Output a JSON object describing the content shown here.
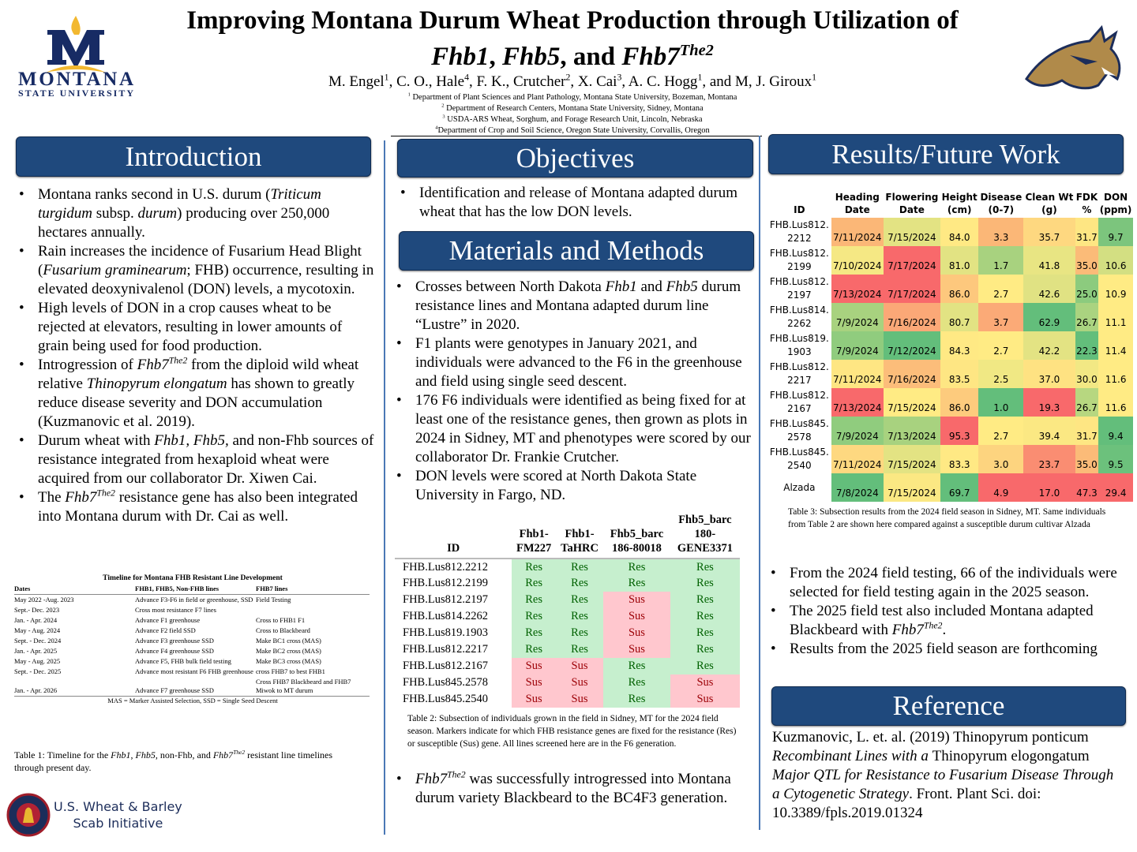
{
  "header": {
    "title_line1": "Improving Montana Durum Wheat Production through Utilization of",
    "title_line2": [
      {
        "t": "Fhb1",
        "s": "i"
      },
      {
        "t": ", "
      },
      {
        "t": "Fhb5",
        "s": "i"
      },
      {
        "t": ", and "
      },
      {
        "t": "Fhb7",
        "s": "i"
      },
      {
        "t": "The2",
        "s": "isup"
      }
    ],
    "authors": [
      {
        "t": "M. Engel"
      },
      {
        "t": "1",
        "s": "sup"
      },
      {
        "t": ", C. O., Hale"
      },
      {
        "t": "4",
        "s": "sup"
      },
      {
        "t": ", F. K., Crutcher"
      },
      {
        "t": "2",
        "s": "sup"
      },
      {
        "t": ", X. Cai"
      },
      {
        "t": "3",
        "s": "sup"
      },
      {
        "t": ", A. C. Hogg"
      },
      {
        "t": "1",
        "s": "sup"
      },
      {
        "t": ", and M, J. Giroux"
      },
      {
        "t": "1",
        "s": "sup"
      }
    ],
    "affiliations": [
      [
        {
          "t": "1",
          "s": "sup"
        },
        {
          "t": " Department of Plant Sciences and Plant Pathology, Montana State University, Bozeman, Montana"
        }
      ],
      [
        {
          "t": "2",
          "s": "sup"
        },
        {
          "t": " Department of Research Centers, Montana State University, Sidney, Montana"
        }
      ],
      [
        {
          "t": "3",
          "s": "sup"
        },
        {
          "t": " USDA-ARS Wheat, Sorghum, and Forage Research Unit, Lincoln, Nebraska"
        }
      ],
      [
        {
          "t": "4",
          "s": "sup"
        },
        {
          "t": "Department of Crop and Soil Science, Oregon State University, Corvallis, Oregon"
        }
      ]
    ],
    "logo_left": "MONTANA STATE UNIVERSITY",
    "logo_right": "bobcat-logo"
  },
  "colors": {
    "heading_box": "#1f497d",
    "res_bg": "#c6efce",
    "sus_bg": "#ffc7ce"
  },
  "introduction": {
    "heading": "Introduction",
    "bullets": [
      [
        {
          "t": "Montana ranks second in U.S. durum ("
        },
        {
          "t": "Triticum turgidum",
          "s": "i"
        },
        {
          "t": " subsp. "
        },
        {
          "t": "durum",
          "s": "i"
        },
        {
          "t": ") producing over 250,000 hectares annually."
        }
      ],
      [
        {
          "t": "Rain increases the incidence of Fusarium Head Blight ("
        },
        {
          "t": "Fusarium graminearum",
          "s": "i"
        },
        {
          "t": "; FHB) occurrence, resulting in elevated deoxynivalenol (DON) levels, a mycotoxin."
        }
      ],
      [
        {
          "t": "High levels of DON in a crop causes wheat to be rejected at elevators, resulting in lower amounts of grain being used for food production."
        }
      ],
      [
        {
          "t": "Introgression of "
        },
        {
          "t": "Fhb7",
          "s": "i"
        },
        {
          "t": "The2",
          "s": "isup"
        },
        {
          "t": " from the diploid wild wheat relative "
        },
        {
          "t": "Thinopyrum elongatum",
          "s": "i"
        },
        {
          "t": " has shown to greatly reduce disease severity and DON accumulation (Kuzmanovic et al. 2019)."
        }
      ],
      [
        {
          "t": "Durum wheat with "
        },
        {
          "t": "Fhb1, Fhb5,",
          "s": "i"
        },
        {
          "t": " and non-Fhb sources of resistance integrated from hexaploid wheat were acquired from our collaborator Dr. Xiwen Cai."
        }
      ],
      [
        {
          "t": "The "
        },
        {
          "t": "Fhb7",
          "s": "i"
        },
        {
          "t": "The2",
          "s": "isup"
        },
        {
          "t": " resistance gene has also been integrated into Montana durum with Dr. Cai as well."
        }
      ]
    ],
    "timeline": {
      "title": "Timeline for Montana FHB Resistant Line Development",
      "headers": [
        "Dates",
        "FHB1, FHB5, Non-FHB lines",
        "FHB7 lines"
      ],
      "rows": [
        [
          "May 2022 -Aug. 2023",
          "Advance F3-F6 in field or greenhouse, SSD",
          "Field Testing"
        ],
        [
          "Sept.- Dec. 2023",
          "Cross most resistance F7 lines",
          ""
        ],
        [
          "Jan. - Apr. 2024",
          "Advance F1 greenhouse",
          "Cross to FHB1 F1"
        ],
        [
          "May - Aug. 2024",
          "Advance F2 field SSD",
          "Cross to Blackbeard"
        ],
        [
          "Sept. - Dec. 2024",
          "Advance F3 greenhouse SSD",
          "Make BC1 cross (MAS)"
        ],
        [
          "Jan. - Apr. 2025",
          "Advance F4 greenhouse SSD",
          "Make BC2 cross (MAS)"
        ],
        [
          "May - Aug. 2025",
          "Advance F5, FHB bulk field testing",
          "Make BC3 cross (MAS)"
        ],
        [
          "Sept. - Dec. 2025",
          "Advance most resistant F6 FHB greenhouse",
          "cross FHB7 to best FHB1"
        ],
        [
          "Jan. - Apr. 2026",
          "Advance F7 greenhouse SSD",
          "Cross FHB7 Blackbeard and FHB7 Miwok to MT durum"
        ]
      ],
      "footnote": "MAS = Marker Assisted Selection, SSD = Single Seed Descent",
      "caption": [
        {
          "t": "Table 1: Timeline for the "
        },
        {
          "t": "Fhb1",
          "s": "i"
        },
        {
          "t": ", "
        },
        {
          "t": "Fhb5",
          "s": "i"
        },
        {
          "t": ", non-Fhb, and "
        },
        {
          "t": "Fhb7",
          "s": "i"
        },
        {
          "t": "The2",
          "s": "isup"
        },
        {
          "t": " resistant line timelines through present day."
        }
      ]
    },
    "sponsor_logo": {
      "line1": "U.S. Wheat & Barley",
      "line2": "Scab Initiative"
    }
  },
  "objectives": {
    "heading": "Objectives",
    "bullets": [
      [
        {
          "t": "Identification and release of Montana adapted durum wheat that has the low DON levels."
        }
      ]
    ]
  },
  "methods": {
    "heading": "Materials and Methods",
    "bullets": [
      [
        {
          "t": "Crosses between North Dakota "
        },
        {
          "t": "Fhb1",
          "s": "i"
        },
        {
          "t": " and "
        },
        {
          "t": "Fhb5",
          "s": "i"
        },
        {
          "t": " durum resistance lines and Montana adapted durum line “Lustre” in 2020."
        }
      ],
      [
        {
          "t": "F1 plants were genotypes in January 2021, and individuals were advanced to the F6 in the greenhouse and field using single seed descent."
        }
      ],
      [
        {
          "t": "176 F6 individuals were identified as being fixed for at least one of the resistance genes, then grown as plots in 2024 in Sidney, MT and phenotypes were scored by our collaborator Dr. Frankie Crutcher."
        }
      ],
      [
        {
          "t": "DON levels were scored at North Dakota State University in Fargo, ND."
        }
      ]
    ],
    "table2": {
      "headers": [
        "ID",
        "Fhb1-\nFM227",
        "Fhb1-\nTaHRC",
        "Fhb5_barc\n186-80018",
        "Fhb5_barc\n180-\nGENE3371"
      ],
      "rows": [
        [
          "FHB.Lus812.2212",
          "Res",
          "Res",
          "Res",
          "Res"
        ],
        [
          "FHB.Lus812.2199",
          "Res",
          "Res",
          "Res",
          "Res"
        ],
        [
          "FHB.Lus812.2197",
          "Res",
          "Res",
          "Sus",
          "Res"
        ],
        [
          "FHB.Lus814.2262",
          "Res",
          "Res",
          "Sus",
          "Res"
        ],
        [
          "FHB.Lus819.1903",
          "Res",
          "Res",
          "Sus",
          "Res"
        ],
        [
          "FHB.Lus812.2217",
          "Res",
          "Res",
          "Sus",
          "Res"
        ],
        [
          "FHB.Lus812.2167",
          "Sus",
          "Sus",
          "Res",
          "Res"
        ],
        [
          "FHB.Lus845.2578",
          "Sus",
          "Sus",
          "Res",
          "Sus"
        ],
        [
          "FHB.Lus845.2540",
          "Sus",
          "Sus",
          "Res",
          "Sus"
        ]
      ],
      "caption": "Table 2: Subsection of individuals grown in the field in Sidney, MT for the 2024 field season. Markers indicate for which FHB resistance genes are fixed for the resistance (Res) or susceptible (Sus) gene. All lines screened here are in the F6 generation."
    },
    "bullets_after": [
      [
        {
          "t": "Fhb7",
          "s": "i"
        },
        {
          "t": "The2",
          "s": "isup"
        },
        {
          "t": " was successfully introgressed into Montana durum variety Blackbeard to the BC4F3 generation."
        }
      ]
    ]
  },
  "results": {
    "heading": "Results/Future Work",
    "table3": {
      "headers": [
        "ID",
        "Heading\nDate",
        "Flowering\nDate",
        "Height\n(cm)",
        "Disease\n(0-7)",
        "Clean Wt\n(g)",
        "FDK\n%",
        "DON\n(ppm)"
      ],
      "rows": [
        {
          "id": "FHB.Lus812.\n2212",
          "values": [
            "7/11/2024",
            "7/15/2024",
            "84.0",
            "3.3",
            "35.7",
            "31.7",
            "9.7"
          ],
          "colors": [
            "#fbb777",
            "#e3e383",
            "#ffe984",
            "#fbb777",
            "#fed880",
            "#fee683",
            "#7cc57d"
          ]
        },
        {
          "id": "FHB.Lus812.\n2199",
          "values": [
            "7/10/2024",
            "7/17/2024",
            "81.0",
            "1.7",
            "41.8",
            "35.0",
            "10.6"
          ],
          "colors": [
            "#f5e884",
            "#f8696b",
            "#e2e383",
            "#a8d27f",
            "#e8e583",
            "#fbbb78",
            "#d3df82"
          ]
        },
        {
          "id": "FHB.Lus812.\n2197",
          "values": [
            "7/13/2024",
            "7/17/2024",
            "86.0",
            "2.7",
            "42.6",
            "25.0",
            "10.9"
          ],
          "colors": [
            "#f8696b",
            "#f8696b",
            "#fdc87d",
            "#ffeb84",
            "#e0e283",
            "#8ccb7e",
            "#ffeb84"
          ]
        },
        {
          "id": "FHB.Lus814.\n2262",
          "values": [
            "7/9/2024",
            "7/16/2024",
            "80.7",
            "3.7",
            "62.9",
            "26.7",
            "11.1"
          ],
          "colors": [
            "#a8d27f",
            "#fba877",
            "#e2e383",
            "#fbaa77",
            "#63be7b",
            "#aad380",
            "#ffeb84"
          ]
        },
        {
          "id": "FHB.Lus819.\n1903",
          "values": [
            "7/9/2024",
            "7/12/2024",
            "84.3",
            "2.7",
            "42.2",
            "22.3",
            "11.4"
          ],
          "colors": [
            "#90cc7e",
            "#63be7b",
            "#ffe984",
            "#ffeb84",
            "#e3e383",
            "#63be7b",
            "#ffeb84"
          ]
        },
        {
          "id": "FHB.Lus812.\n2217",
          "values": [
            "7/11/2024",
            "7/16/2024",
            "83.5",
            "2.5",
            "37.0",
            "30.0",
            "11.6"
          ],
          "colors": [
            "#fee683",
            "#fcbd7a",
            "#fee683",
            "#f0e884",
            "#fee282",
            "#f2e884",
            "#ffeb84"
          ]
        },
        {
          "id": "FHB.Lus812.\n2167",
          "values": [
            "7/13/2024",
            "7/15/2024",
            "86.0",
            "1.0",
            "19.3",
            "26.7",
            "11.6"
          ],
          "colors": [
            "#f8696b",
            "#ffeb84",
            "#fdcb7d",
            "#63be7b",
            "#f8696b",
            "#b7d780",
            "#ffeb84"
          ]
        },
        {
          "id": "FHB.Lus845.\n2578",
          "values": [
            "7/9/2024",
            "7/13/2024",
            "95.3",
            "2.7",
            "39.4",
            "31.7",
            "9.4"
          ],
          "colors": [
            "#90cc7e",
            "#a8d27f",
            "#f8696b",
            "#ffeb84",
            "#fbe883",
            "#fee683",
            "#63be7b"
          ]
        },
        {
          "id": "FHB.Lus845.\n2540",
          "values": [
            "7/11/2024",
            "7/15/2024",
            "83.3",
            "3.0",
            "23.7",
            "35.0",
            "9.5"
          ],
          "colors": [
            "#fed880",
            "#e3e383",
            "#ffe984",
            "#fdd47f",
            "#fa8d72",
            "#fbbb78",
            "#6cc17c"
          ]
        },
        {
          "id": "Alzada",
          "values": [
            "7/8/2024",
            "7/15/2024",
            "69.7",
            "4.9",
            "17.0",
            "47.3",
            "29.4"
          ],
          "colors": [
            "#63be7b",
            "#fbe883",
            "#63be7b",
            "#f8696b",
            "#f8696b",
            "#f8696b",
            "#f8696b"
          ]
        }
      ],
      "caption": "Table 3: Subsection results from the 2024 field season in Sidney, MT. Same individuals from Table 2 are shown here compared against a susceptible durum cultivar Alzada"
    },
    "bullets": [
      [
        {
          "t": "From the 2024 field testing, 66 of the individuals were selected for field testing again in the 2025 season."
        }
      ],
      [
        {
          "t": "The 2025 field test also included Montana adapted Blackbeard with "
        },
        {
          "t": "Fhb7",
          "s": "i"
        },
        {
          "t": "The2",
          "s": "isup"
        },
        {
          "t": "."
        }
      ],
      [
        {
          "t": "Results from the 2025 field season are forthcoming"
        }
      ]
    ]
  },
  "reference": {
    "heading": "Reference",
    "text": [
      {
        "t": "Kuzmanovic, L. et. al. (2019) Thinopyrum ponticum "
      },
      {
        "t": "Recombinant Lines with a ",
        "s": "i"
      },
      {
        "t": "Thinopyrum elogongatum "
      },
      {
        "t": "Major QTL for Resistance to Fusarium Disease Through a Cytogenetic Strategy",
        "s": "i"
      },
      {
        "t": ".  Front. Plant Sci. doi: 10.3389/fpls.2019.01324"
      }
    ]
  }
}
